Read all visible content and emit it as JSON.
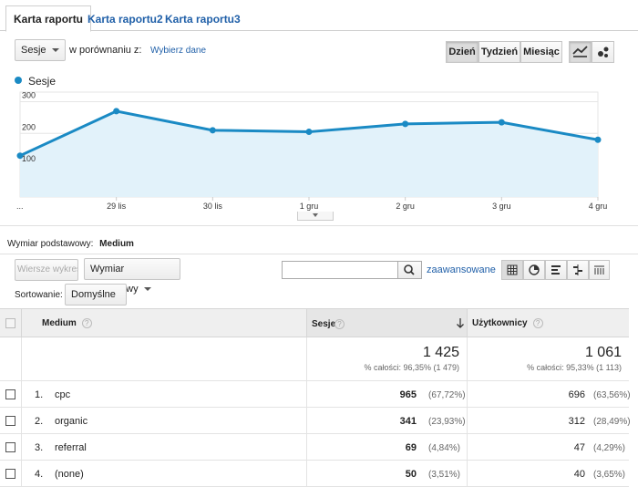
{
  "tabs": [
    {
      "label": "Karta raportu",
      "active": true
    },
    {
      "label": "Karta raportu2",
      "active": false
    },
    {
      "label": "Karta raportu3",
      "active": false
    }
  ],
  "toolbar": {
    "metric_select": "Sesje",
    "compare_label": "w porównaniu z:",
    "compare_link": "Wybierz dane",
    "periods": [
      "Dzień",
      "Tydzień",
      "Miesiąc"
    ],
    "active_period": "Dzień"
  },
  "legend": {
    "series_name": "Sesje",
    "color": "#1a8ac4"
  },
  "chart_data": {
    "type": "line",
    "series": [
      {
        "name": "Sesje",
        "values": [
          130,
          270,
          210,
          205,
          230,
          235,
          180
        ]
      }
    ],
    "x": [
      "...",
      "29 lis",
      "30 lis",
      "1 gru",
      "2 gru",
      "3 gru",
      "4 gru"
    ],
    "y_ticks": [
      100,
      200,
      300
    ],
    "ylim": [
      0,
      330
    ],
    "grid": true,
    "color": "#1a8ac4",
    "fill": "#e2f2fa"
  },
  "dimension": {
    "label": "Wymiar podstawowy:",
    "value": "Medium"
  },
  "controls": {
    "plot_rows": "Wiersze wykresu",
    "secondary_dimension": "Wymiar dodatkowy",
    "search_placeholder": "",
    "advanced_link": "zaawansowane",
    "sort_label": "Sortowanie:",
    "sort_value": "Domyślne"
  },
  "table": {
    "headers": {
      "medium": "Medium",
      "sessions": "Sesje",
      "users": "Użytkownicy"
    },
    "totals": {
      "sessions": "1 425",
      "sessions_sub": "% całości: 96,35% (1 479)",
      "users": "1 061",
      "users_sub": "% całości: 95,33% (1 113)"
    },
    "rows": [
      {
        "index": "1.",
        "medium": "cpc",
        "sessions": "965",
        "sessions_pct": "(67,72%)",
        "users": "696",
        "users_pct": "(63,56%)"
      },
      {
        "index": "2.",
        "medium": "organic",
        "sessions": "341",
        "sessions_pct": "(23,93%)",
        "users": "312",
        "users_pct": "(28,49%)"
      },
      {
        "index": "3.",
        "medium": "referral",
        "sessions": "69",
        "sessions_pct": "(4,84%)",
        "users": "47",
        "users_pct": "(4,29%)"
      },
      {
        "index": "4.",
        "medium": "(none)",
        "sessions": "50",
        "sessions_pct": "(3,51%)",
        "users": "40",
        "users_pct": "(3,65%)"
      }
    ]
  }
}
